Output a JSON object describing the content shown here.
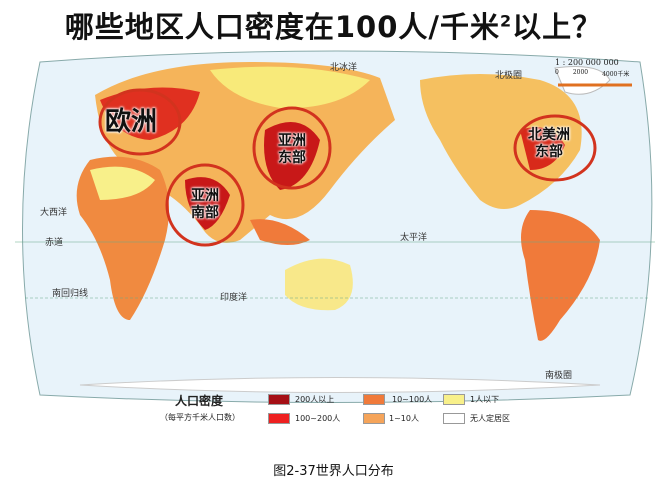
{
  "title": {
    "text": "哪些地区人口密度在100人/千米",
    "sup": "2",
    "suffix": "以上？"
  },
  "map": {
    "scale": {
      "ratio": "1 : 200 000 000",
      "ticks": [
        "0",
        "2000",
        "4000千米"
      ]
    },
    "lines": {
      "arctic_circle": "北极圈",
      "equator": "赤道",
      "tropic_capricorn": "南回归线",
      "antarctic_circle": "南极圈"
    },
    "oceans": [
      "大西洋",
      "太平洋",
      "印度洋",
      "北冰洋"
    ],
    "highlights": [
      {
        "label": "欧洲"
      },
      {
        "label": "亚洲东部",
        "line1": "亚洲",
        "line2": "东部"
      },
      {
        "label": "亚洲南部",
        "line1": "亚洲",
        "line2": "南部"
      },
      {
        "label": "北美洲东部",
        "line1": "北美洲",
        "line2": "东部"
      }
    ],
    "highlight_color": "#d2331e",
    "ocean_color": "#e8f3fa"
  },
  "legend": {
    "title": "人口密度",
    "subtitle": "（每平方千米人口数）",
    "items": [
      {
        "label": "200人以上",
        "color": "#a50f15"
      },
      {
        "label": "100~200人",
        "color": "#ee2020"
      },
      {
        "label": "10~100人",
        "color": "#f07a3a"
      },
      {
        "label": "1~10人",
        "color": "#f5a45a"
      },
      {
        "label": "1人以下",
        "color": "#f8f08a"
      },
      {
        "label": "无人定居区",
        "color": "#ffffff"
      }
    ]
  },
  "caption": "图2-37世界人口分布"
}
